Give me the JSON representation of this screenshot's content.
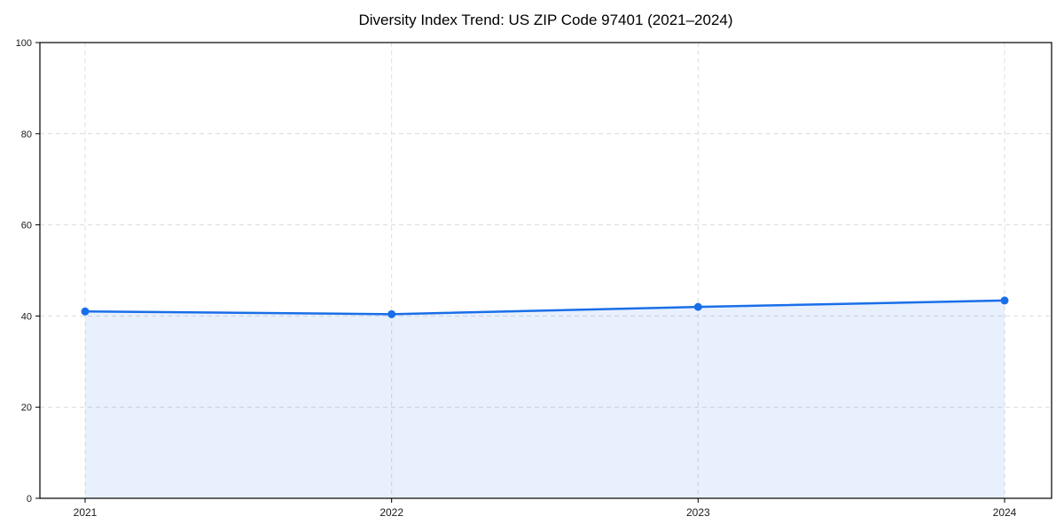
{
  "chart_data": {
    "type": "area",
    "title": "Diversity Index Trend: US ZIP Code 97401 (2021–2024)",
    "categories": [
      "2021",
      "2022",
      "2023",
      "2024"
    ],
    "series": [
      {
        "name": "Diversity Index",
        "values": [
          41.0,
          40.4,
          42.0,
          43.4
        ]
      }
    ],
    "xlabel": "",
    "ylabel": "",
    "ylim": [
      0,
      100
    ],
    "y_ticks": [
      0,
      20,
      40,
      60,
      80,
      100
    ],
    "grid": "dashed horizontal and vertical gridlines at every tick",
    "legend_position": "none",
    "marker": "circle",
    "colors": {
      "line": "#1a6fe8",
      "marker": "#1a6fe8",
      "fill": "#1a6fe8",
      "fill_opacity": 0.1,
      "grid": "#dcdcdc",
      "axis": "#000000",
      "tick_label": "#1a1a1a",
      "background": "#ffffff"
    }
  }
}
